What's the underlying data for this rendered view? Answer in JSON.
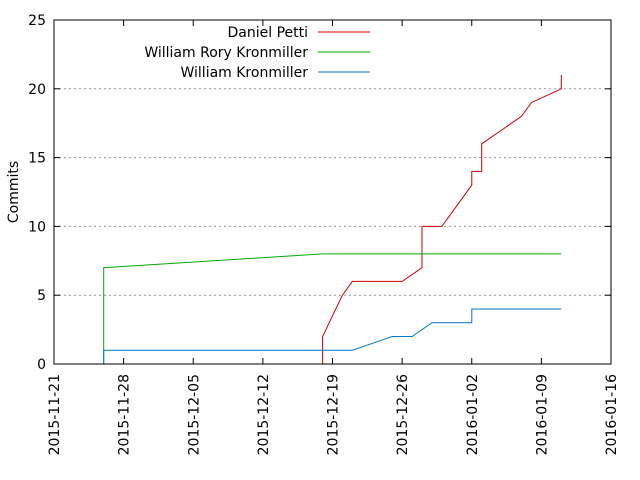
{
  "chart_data": {
    "type": "line",
    "title": "",
    "xlabel": "",
    "ylabel": "Commits",
    "x_range": [
      "2015-11-21",
      "2016-01-16"
    ],
    "ylim": [
      0,
      25
    ],
    "x_ticks": [
      "2015-11-21",
      "2015-11-28",
      "2015-12-05",
      "2015-12-12",
      "2015-12-19",
      "2015-12-26",
      "2016-01-02",
      "2016-01-09",
      "2016-01-16"
    ],
    "y_ticks": [
      0,
      5,
      10,
      15,
      20,
      25
    ],
    "grid": "horizontal dashed",
    "legend_position": "top-right",
    "series": [
      {
        "name": "Daniel Petti",
        "color": "#cc0000",
        "points": [
          [
            "2015-12-18",
            0
          ],
          [
            "2015-12-18",
            2
          ],
          [
            "2015-12-20",
            5
          ],
          [
            "2015-12-21",
            6
          ],
          [
            "2015-12-26",
            6
          ],
          [
            "2015-12-28",
            7
          ],
          [
            "2015-12-28",
            10
          ],
          [
            "2015-12-30",
            10
          ],
          [
            "2015-12-31",
            11
          ],
          [
            "2016-01-01",
            12
          ],
          [
            "2016-01-02",
            13
          ],
          [
            "2016-01-02",
            14
          ],
          [
            "2016-01-03",
            14
          ],
          [
            "2016-01-03",
            15
          ],
          [
            "2016-01-03",
            16
          ],
          [
            "2016-01-05",
            17
          ],
          [
            "2016-01-07",
            18
          ],
          [
            "2016-01-08",
            19
          ],
          [
            "2016-01-11",
            20
          ],
          [
            "2016-01-11",
            21
          ]
        ]
      },
      {
        "name": "William Rory Kronmiller",
        "color": "#00aa00",
        "points": [
          [
            "2015-11-26",
            0
          ],
          [
            "2015-11-26",
            7
          ],
          [
            "2015-12-18",
            8
          ],
          [
            "2016-01-11",
            8
          ]
        ]
      },
      {
        "name": "William Kronmiller",
        "color": "#0077cc",
        "points": [
          [
            "2015-11-26",
            0
          ],
          [
            "2015-11-26",
            1
          ],
          [
            "2015-12-21",
            1
          ],
          [
            "2015-12-25",
            2
          ],
          [
            "2015-12-27",
            2
          ],
          [
            "2015-12-29",
            3
          ],
          [
            "2016-01-02",
            3
          ],
          [
            "2016-01-02",
            4
          ],
          [
            "2016-01-11",
            4
          ]
        ]
      }
    ]
  }
}
